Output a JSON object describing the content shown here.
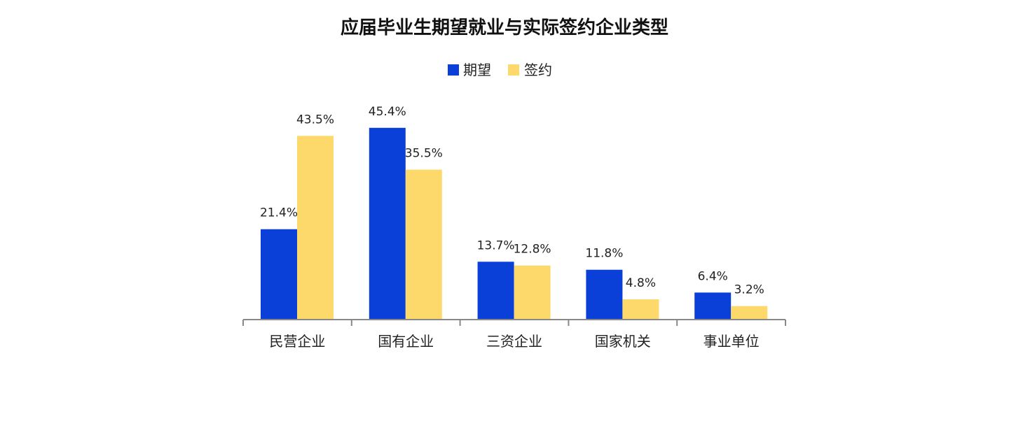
{
  "chart_data": {
    "type": "bar",
    "title": "应届毕业生期望就业与实际签约企业类型",
    "xlabel": "",
    "ylabel": "",
    "ylim": [
      0,
      50
    ],
    "grid": false,
    "legend_position": "top-center",
    "categories": [
      "民营企业",
      "国有企业",
      "三资企业",
      "国家机关",
      "事业单位"
    ],
    "series": [
      {
        "name": "期望",
        "color": "#0a3fd8",
        "values": [
          21.4,
          45.4,
          13.7,
          11.8,
          6.4
        ],
        "labels": [
          "21.4%",
          "45.4%",
          "13.7%",
          "11.8%",
          "6.4%"
        ]
      },
      {
        "name": "签约",
        "color": "#fdd96b",
        "values": [
          43.5,
          35.5,
          12.8,
          4.8,
          3.2
        ],
        "labels": [
          "43.5%",
          "35.5%",
          "12.8%",
          "4.8%",
          "3.2%"
        ]
      }
    ]
  }
}
